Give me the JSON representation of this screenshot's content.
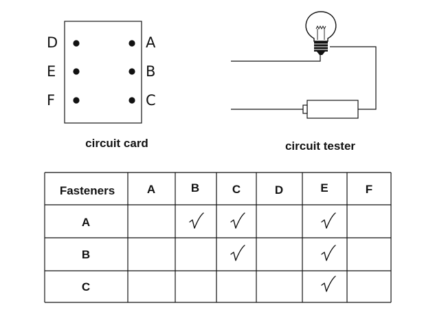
{
  "circuit_card": {
    "caption": "circuit card",
    "left_terminals": [
      "D",
      "E",
      "F"
    ],
    "right_terminals": [
      "A",
      "B",
      "C"
    ]
  },
  "circuit_tester": {
    "caption": "circuit tester",
    "icons": [
      "light-bulb-icon",
      "battery-icon"
    ]
  },
  "table": {
    "corner_header": "Fasteners",
    "column_headers": [
      "A",
      "B",
      "C",
      "D",
      "E",
      "F"
    ],
    "rows": [
      {
        "label": "A",
        "connected": [
          "B",
          "C",
          "E"
        ]
      },
      {
        "label": "B",
        "connected": [
          "C",
          "E"
        ]
      },
      {
        "label": "C",
        "connected": [
          "E"
        ]
      }
    ]
  }
}
